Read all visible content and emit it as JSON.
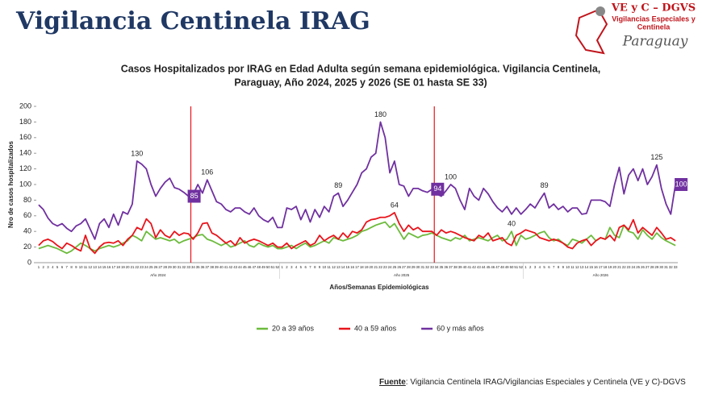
{
  "header": {
    "title": "Vigilancia Centinela IRAG",
    "logo": {
      "name": "VE y C – DGVS",
      "subtitle_lines": [
        "Vigilancias Especiales y",
        "Centinela"
      ],
      "country": "Paraguay"
    }
  },
  "chart_data": {
    "type": "line",
    "title_lines": [
      "Casos Hospitalizados por IRAG en Edad Adulta según semana epidemiológica. Vigilancia Centinela,",
      "Paraguay, Año 2024, 2025 y 2026 (SE 01 hasta SE 33)"
    ],
    "y_label": "Nro de casos hospitalizados",
    "x_label": "Años/Semanas Epidemiológicas",
    "years": [
      {
        "label": "Año 2024",
        "weeks": [
          1,
          2,
          3,
          4,
          5,
          6,
          7,
          8,
          9,
          10,
          11,
          12,
          13,
          14,
          15,
          16,
          17,
          18,
          19,
          20,
          21,
          22,
          23,
          24,
          25,
          26,
          27,
          28,
          29,
          30,
          31,
          32,
          33,
          34,
          35,
          36,
          37,
          38,
          39,
          40,
          41,
          42,
          43,
          44,
          45,
          46,
          47,
          48,
          49,
          50,
          51,
          52
        ]
      },
      {
        "label": "Año 2025",
        "weeks": [
          1,
          2,
          3,
          4,
          5,
          6,
          7,
          8,
          9,
          10,
          11,
          12,
          13,
          14,
          15,
          16,
          17,
          18,
          19,
          20,
          21,
          22,
          23,
          24,
          25,
          26,
          27,
          28,
          29,
          30,
          31,
          32,
          33,
          34,
          35,
          36,
          37,
          38,
          39,
          40,
          41,
          42,
          43,
          44,
          45,
          46,
          47,
          48,
          49,
          50,
          51,
          52
        ]
      },
      {
        "label": "Año 2026",
        "weeks": [
          1,
          2,
          3,
          4,
          5,
          6,
          7,
          8,
          9,
          10,
          11,
          12,
          13,
          14,
          15,
          16,
          17,
          18,
          19,
          20,
          21,
          22,
          23,
          24,
          25,
          26,
          27,
          28,
          29,
          30,
          31,
          32,
          33
        ]
      }
    ],
    "ylim": [
      0,
      200
    ],
    "yticks": [
      0,
      20,
      40,
      60,
      80,
      100,
      120,
      140,
      160,
      180,
      200
    ],
    "vlines": [
      32,
      84
    ],
    "vline_color": "#e8141b",
    "series": [
      {
        "name": "20 a 39 años",
        "color": "#6cbb3c",
        "label_at": [
          101
        ],
        "boxed_at": [],
        "values": [
          18,
          20,
          22,
          20,
          18,
          15,
          12,
          15,
          20,
          25,
          22,
          18,
          15,
          18,
          20,
          22,
          20,
          22,
          25,
          28,
          35,
          32,
          28,
          40,
          35,
          30,
          32,
          30,
          28,
          30,
          25,
          28,
          30,
          32,
          35,
          36,
          30,
          28,
          25,
          22,
          25,
          20,
          22,
          25,
          28,
          22,
          20,
          25,
          22,
          20,
          22,
          18,
          18,
          20,
          22,
          18,
          22,
          25,
          20,
          22,
          25,
          28,
          25,
          32,
          30,
          28,
          30,
          32,
          35,
          40,
          42,
          45,
          48,
          50,
          52,
          45,
          50,
          40,
          30,
          38,
          35,
          32,
          35,
          36,
          38,
          35,
          32,
          30,
          28,
          32,
          30,
          35,
          28,
          30,
          32,
          30,
          28,
          32,
          35,
          28,
          30,
          40,
          22,
          35,
          30,
          32,
          35,
          38,
          40,
          32,
          28,
          30,
          25,
          22,
          30,
          28,
          25,
          30,
          35,
          28,
          32,
          30,
          45,
          35,
          32,
          48,
          40,
          38,
          30,
          42,
          35,
          30,
          38,
          32,
          28,
          25,
          22
        ]
      },
      {
        "name": "40 a 59 años",
        "color": "#e8141b",
        "label_at": [
          76
        ],
        "boxed_at": [],
        "values": [
          22,
          28,
          30,
          27,
          22,
          18,
          25,
          22,
          18,
          15,
          35,
          18,
          12,
          20,
          25,
          26,
          25,
          28,
          22,
          30,
          35,
          45,
          42,
          56,
          50,
          32,
          42,
          35,
          32,
          40,
          35,
          38,
          37,
          30,
          38,
          50,
          51,
          38,
          35,
          30,
          25,
          28,
          22,
          32,
          25,
          28,
          30,
          28,
          25,
          22,
          25,
          20,
          20,
          25,
          18,
          22,
          25,
          28,
          22,
          25,
          35,
          28,
          32,
          35,
          30,
          38,
          32,
          40,
          38,
          42,
          52,
          55,
          56,
          58,
          58,
          60,
          64,
          50,
          40,
          48,
          42,
          45,
          40,
          40,
          40,
          35,
          42,
          38,
          40,
          38,
          35,
          32,
          30,
          28,
          35,
          32,
          38,
          28,
          30,
          32,
          25,
          22,
          35,
          38,
          42,
          40,
          38,
          32,
          30,
          28,
          30,
          28,
          25,
          20,
          18,
          25,
          28,
          30,
          22,
          28,
          32,
          30,
          35,
          28,
          45,
          48,
          42,
          55,
          38,
          45,
          40,
          35,
          45,
          38,
          30,
          32,
          28
        ]
      },
      {
        "name": "60 y más años",
        "color": "#7030a0",
        "label_at": [
          21,
          36,
          64,
          73,
          88,
          108,
          132
        ],
        "boxed_at": [
          32,
          84,
          136
        ],
        "values": [
          74,
          68,
          57,
          50,
          47,
          50,
          44,
          40,
          47,
          50,
          56,
          43,
          30,
          50,
          56,
          45,
          62,
          48,
          65,
          62,
          75,
          130,
          126,
          120,
          100,
          85,
          95,
          103,
          108,
          96,
          94,
          90,
          85,
          87,
          100,
          89,
          106,
          92,
          78,
          75,
          68,
          65,
          70,
          70,
          65,
          62,
          70,
          60,
          55,
          52,
          58,
          45,
          45,
          70,
          68,
          72,
          55,
          68,
          52,
          68,
          58,
          72,
          65,
          85,
          89,
          72,
          80,
          90,
          100,
          115,
          120,
          135,
          140,
          180,
          160,
          115,
          130,
          100,
          98,
          85,
          95,
          95,
          92,
          90,
          94,
          88,
          85,
          92,
          100,
          95,
          80,
          68,
          95,
          85,
          80,
          95,
          88,
          78,
          70,
          65,
          72,
          62,
          70,
          62,
          68,
          75,
          70,
          80,
          89,
          70,
          75,
          68,
          72,
          65,
          70,
          70,
          62,
          63,
          80,
          80,
          80,
          78,
          72,
          100,
          122,
          88,
          112,
          120,
          105,
          120,
          100,
          110,
          125,
          95,
          75,
          62,
          100
        ]
      }
    ]
  },
  "footer": {
    "source_label": "Fuente",
    "source_text": ": Vigilancia  Centinela IRAG/Vigilancias Especiales y Centinela (VE y C)-DGVS"
  }
}
